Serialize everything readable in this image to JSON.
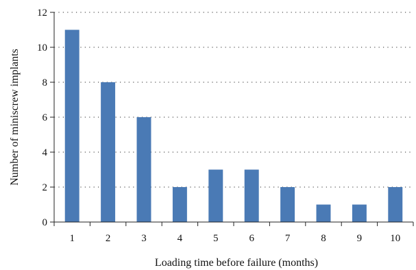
{
  "chart_data": {
    "type": "bar",
    "title": "",
    "xlabel": "Loading time before failure (months)",
    "ylabel": "Number of miniscrew implants",
    "categories": [
      "1",
      "2",
      "3",
      "4",
      "5",
      "6",
      "7",
      "8",
      "9",
      "10"
    ],
    "values": [
      11,
      8,
      6,
      2,
      3,
      3,
      2,
      1,
      1,
      2
    ],
    "ylim": [
      0,
      12
    ],
    "yticks": [
      0,
      2,
      4,
      6,
      8,
      10,
      12
    ],
    "grid": "horizontal-dotted",
    "legend": "none",
    "colors": {
      "bar": "#4a7ab5",
      "grid": "#555555",
      "axis": "#222222"
    }
  }
}
